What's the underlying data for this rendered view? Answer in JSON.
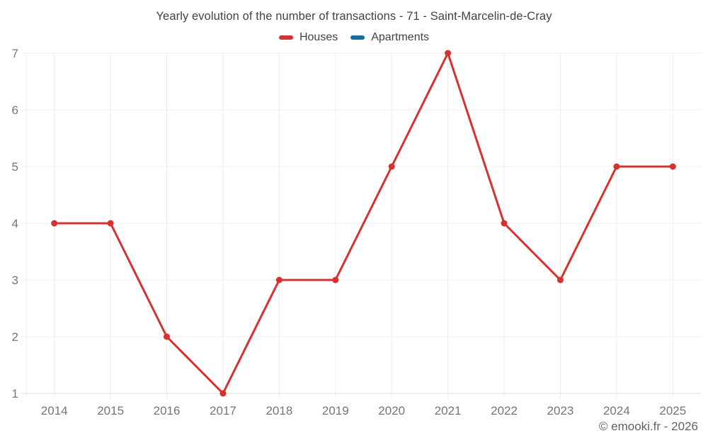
{
  "header": {
    "title": "Yearly evolution of the number of transactions - 71 - Saint-Marcelin-de-Cray",
    "legend": [
      {
        "label": "Houses",
        "color": "#d7312f"
      },
      {
        "label": "Apartments",
        "color": "#176f9e"
      }
    ]
  },
  "footer": {
    "copyright": "© emooki.fr - 2026"
  },
  "chart_data": {
    "type": "line",
    "title": "Yearly evolution of the number of transactions - 71 - Saint-Marcelin-de-Cray",
    "x": [
      "2014",
      "2015",
      "2016",
      "2017",
      "2018",
      "2019",
      "2020",
      "2021",
      "2022",
      "2023",
      "2024",
      "2025"
    ],
    "series": [
      {
        "name": "Houses",
        "color": "#d7312f",
        "values": [
          4,
          4,
          2,
          1,
          3,
          3,
          5,
          7,
          4,
          3,
          5,
          5
        ]
      },
      {
        "name": "Apartments",
        "color": "#176f9e",
        "values": [
          null,
          null,
          null,
          null,
          null,
          null,
          null,
          null,
          null,
          null,
          null,
          null
        ]
      }
    ],
    "xlabel": "",
    "ylabel": "",
    "ylim": [
      1,
      7
    ],
    "yticks": [
      1,
      2,
      3,
      4,
      5,
      6,
      7
    ],
    "grid": true,
    "legend_position": "top",
    "axis_label_color": "#757575",
    "gridline_color": "#ececec",
    "axis_line_color": "#dedede"
  }
}
